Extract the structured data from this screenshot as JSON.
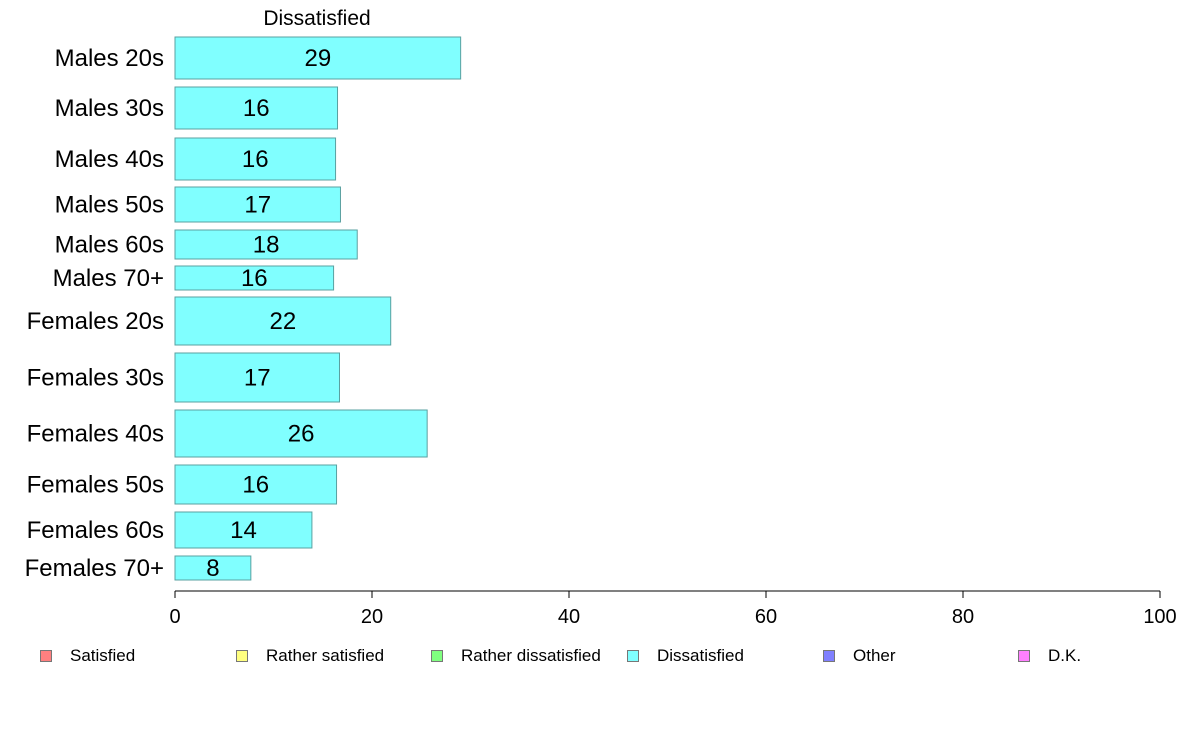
{
  "chart_data": {
    "type": "bar",
    "orientation": "horizontal",
    "title": "Dissatisfied",
    "categories": [
      "Males 20s",
      "Males 30s",
      "Males 40s",
      "Males 50s",
      "Males 60s",
      "Males 70+",
      "Females 20s",
      "Females 30s",
      "Females 40s",
      "Females 50s",
      "Females 60s",
      "Females 70+"
    ],
    "values": [
      29,
      16.5,
      16.3,
      16.8,
      18.5,
      16.1,
      21.9,
      16.7,
      25.6,
      16.4,
      13.9,
      7.7
    ],
    "data_labels": [
      "29",
      "16",
      "16",
      "17",
      "18",
      "16",
      "22",
      "17",
      "26",
      "16",
      "14",
      "8"
    ],
    "xlim": [
      0,
      100
    ],
    "xticks": [
      "0",
      "20",
      "40",
      "60",
      "80",
      "100"
    ],
    "bar_color": "#80ffff",
    "bar_border": "#5aa0a0",
    "legend": [
      {
        "label": "Satisfied",
        "color": "#ff8080"
      },
      {
        "label": "Rather satisfied",
        "color": "#ffff80"
      },
      {
        "label": "Rather dissatisfied",
        "color": "#80ff80"
      },
      {
        "label": "Dissatisfied",
        "color": "#80ffff"
      },
      {
        "label": "Other",
        "color": "#8080ff"
      },
      {
        "label": "D.K.",
        "color": "#ff80ff"
      }
    ],
    "legend_position": "bottom"
  }
}
